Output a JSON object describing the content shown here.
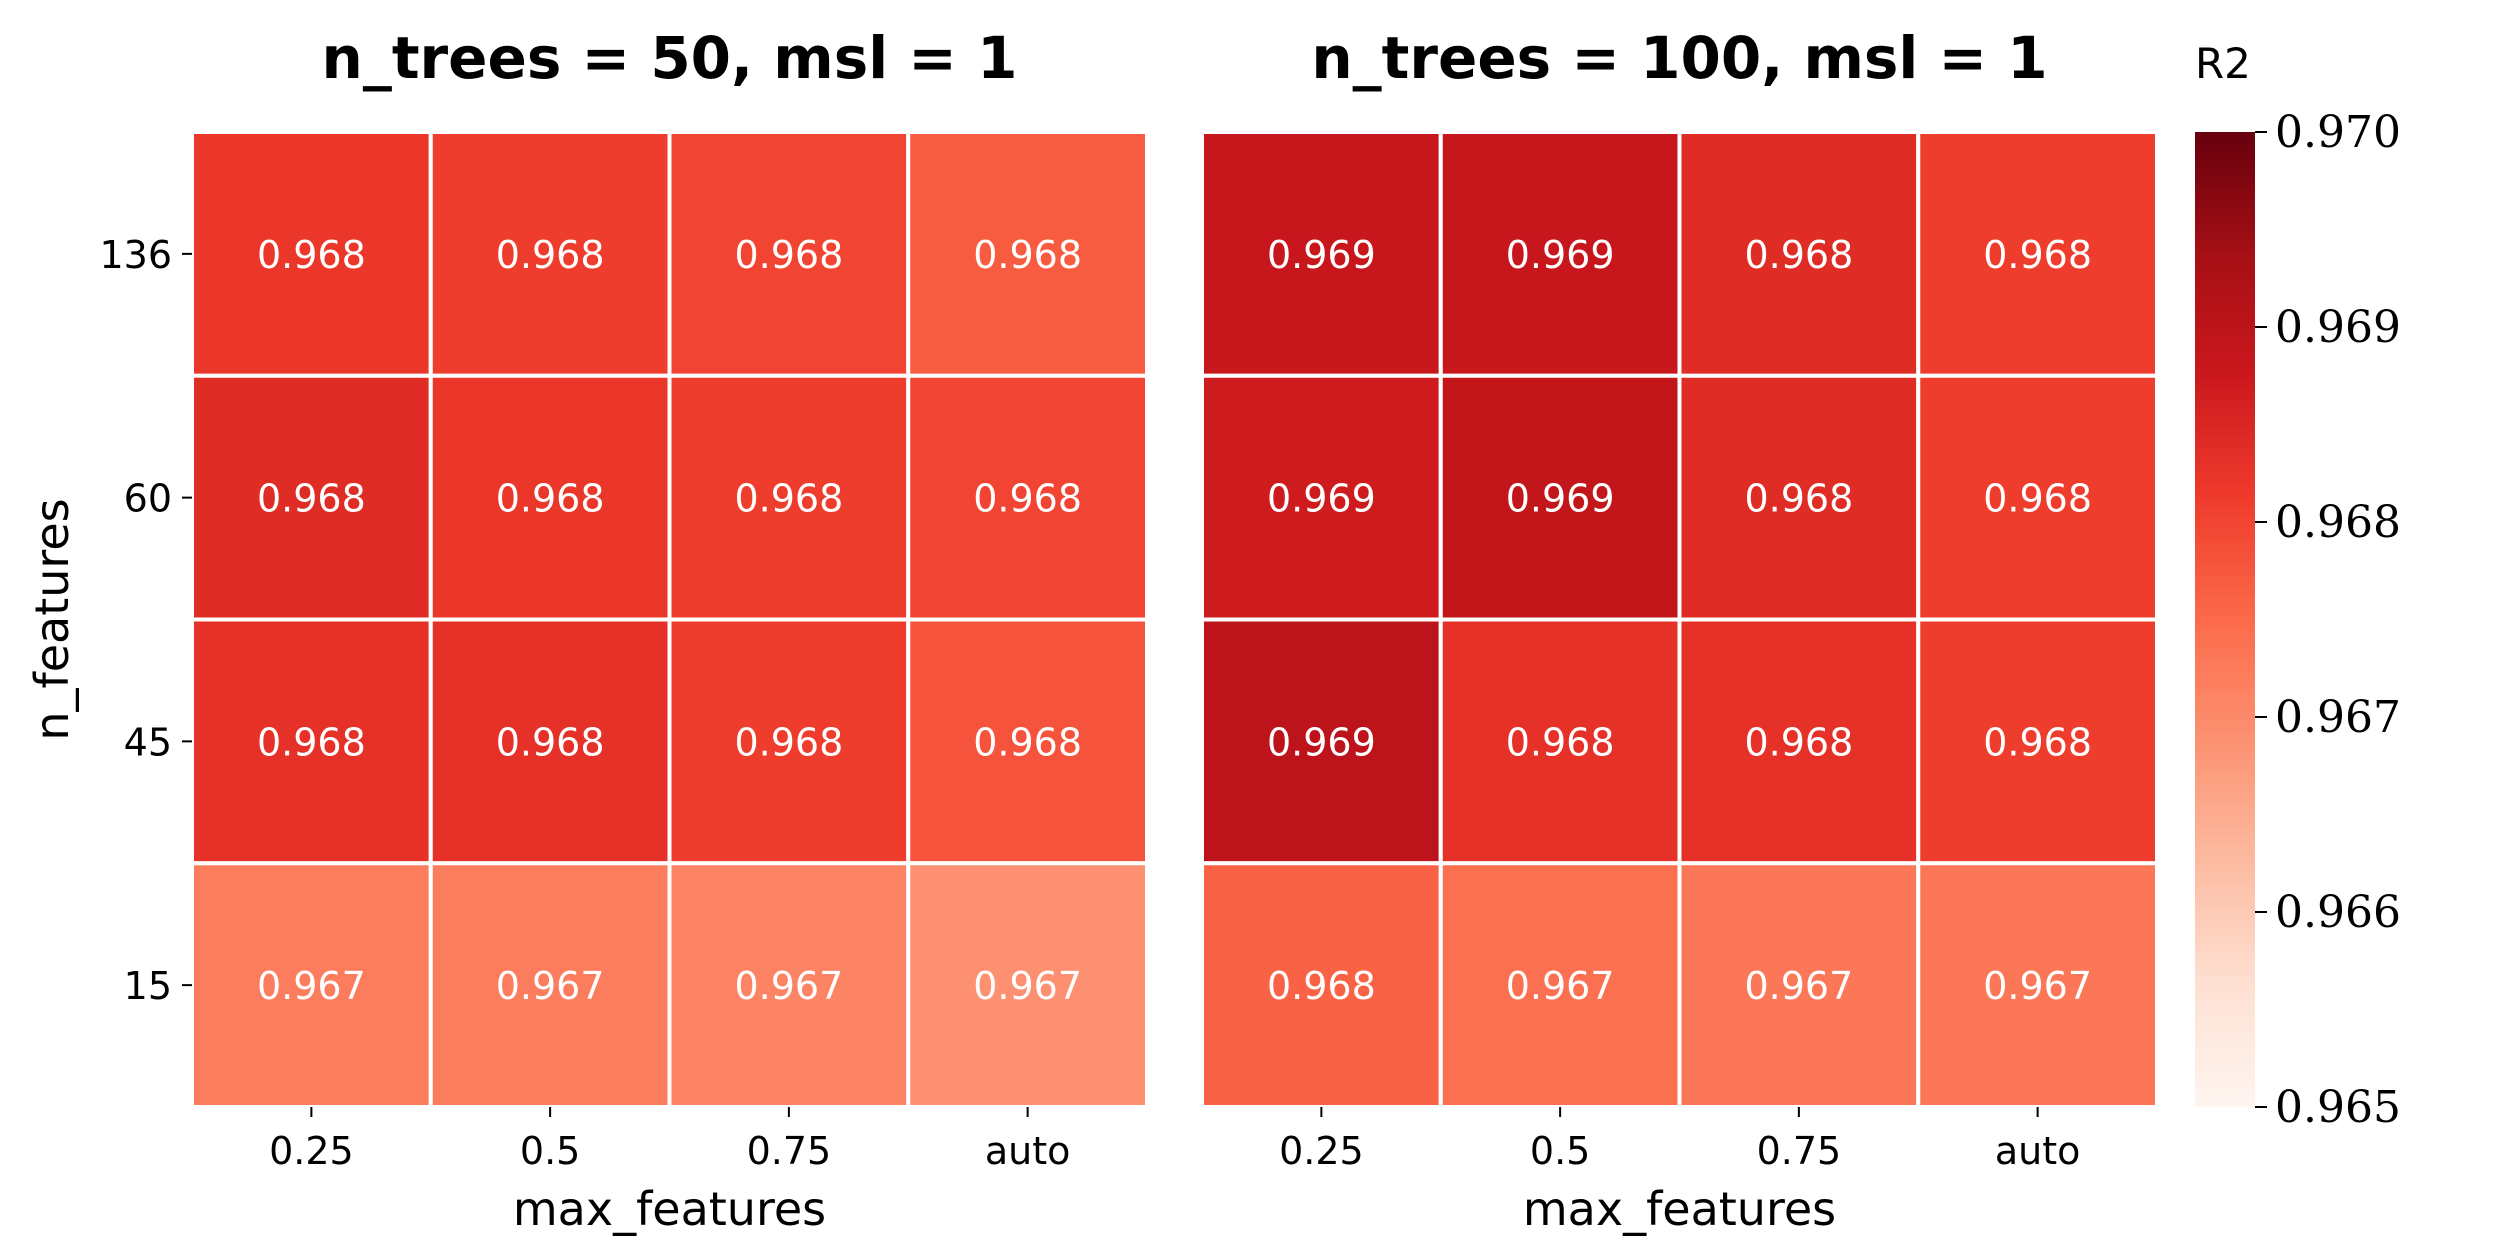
{
  "chart_data": [
    {
      "type": "heatmap",
      "title": "n_trees = 50, msl = 1",
      "xlabel": "max_features",
      "ylabel": "n_features",
      "x_categories": [
        "0.25",
        "0.5",
        "0.75",
        "auto"
      ],
      "y_categories": [
        "136",
        "60",
        "45",
        "15"
      ],
      "values": [
        [
          0.9682,
          0.9681,
          0.968,
          0.9677
        ],
        [
          0.9684,
          0.9682,
          0.9681,
          0.968
        ],
        [
          0.9683,
          0.9683,
          0.9681,
          0.9678
        ],
        [
          0.9672,
          0.9672,
          0.9671,
          0.9669
        ]
      ],
      "labels": [
        [
          "0.968",
          "0.968",
          "0.968",
          "0.968"
        ],
        [
          "0.968",
          "0.968",
          "0.968",
          "0.968"
        ],
        [
          "0.968",
          "0.968",
          "0.968",
          "0.968"
        ],
        [
          "0.967",
          "0.967",
          "0.967",
          "0.967"
        ]
      ]
    },
    {
      "type": "heatmap",
      "title": "n_trees = 100, msl = 1",
      "xlabel": "max_features",
      "ylabel": "",
      "x_categories": [
        "0.25",
        "0.5",
        "0.75",
        "auto"
      ],
      "y_categories": [
        "136",
        "60",
        "45",
        "15"
      ],
      "values": [
        [
          0.9688,
          0.9688,
          0.9684,
          0.9681
        ],
        [
          0.9687,
          0.9689,
          0.9684,
          0.9681
        ],
        [
          0.969,
          0.9683,
          0.9683,
          0.9681
        ],
        [
          0.9676,
          0.9674,
          0.9673,
          0.9673
        ]
      ],
      "labels": [
        [
          "0.969",
          "0.969",
          "0.968",
          "0.968"
        ],
        [
          "0.969",
          "0.969",
          "0.968",
          "0.968"
        ],
        [
          "0.969",
          "0.968",
          "0.968",
          "0.968"
        ],
        [
          "0.968",
          "0.967",
          "0.967",
          "0.967"
        ]
      ]
    }
  ],
  "colorbar": {
    "title": "R2",
    "colormap": "Reds",
    "vmin": 0.965,
    "vmax": 0.97,
    "ticks": [
      "0.965",
      "0.966",
      "0.967",
      "0.968",
      "0.969",
      "0.970"
    ]
  }
}
